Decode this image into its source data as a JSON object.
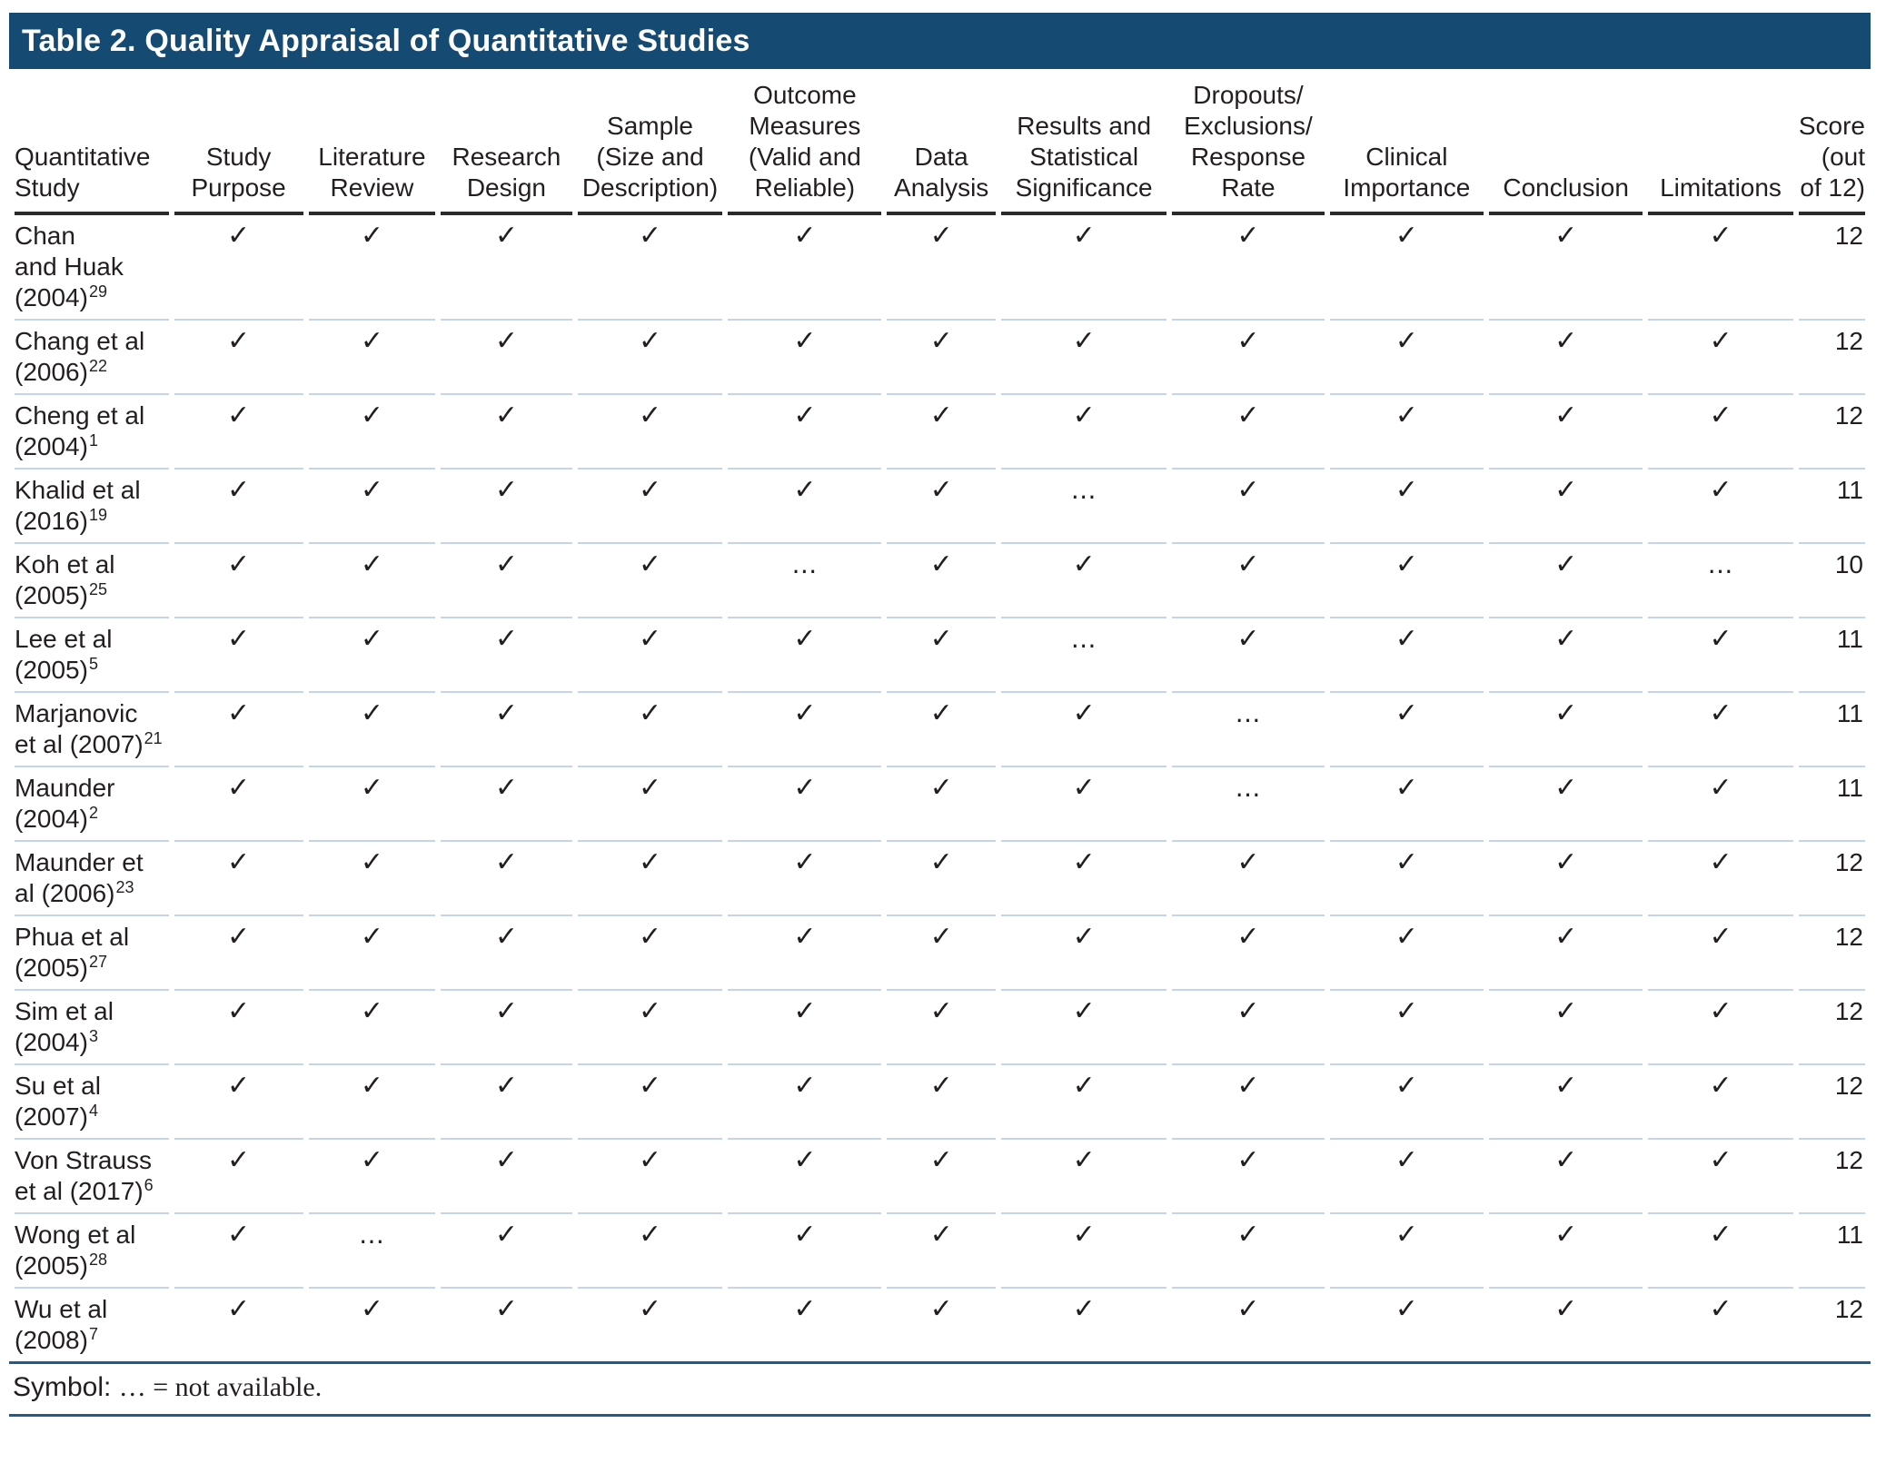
{
  "title": "Table 2. Quality Appraisal of Quantitative Studies",
  "colors": {
    "title_bar": "#154a73",
    "header_rule": "#2a2a2a",
    "row_separator": "#c4d4ea",
    "footnote_rule": "#1f5c8d",
    "text": "#231f20"
  },
  "symbols": {
    "check": "✓",
    "not_available": "…"
  },
  "columns": [
    {
      "id": "quantitative-study",
      "lines": [
        "Quantitative",
        "Study"
      ],
      "align": "left"
    },
    {
      "id": "study-purpose",
      "lines": [
        "Study",
        "Purpose"
      ],
      "align": "center"
    },
    {
      "id": "literature-review",
      "lines": [
        "Literature",
        "Review"
      ],
      "align": "center"
    },
    {
      "id": "research-design",
      "lines": [
        "Research",
        "Design"
      ],
      "align": "center"
    },
    {
      "id": "sample-size-description",
      "lines": [
        "Sample",
        "(Size and",
        "Description)"
      ],
      "align": "center"
    },
    {
      "id": "outcome-measures",
      "lines": [
        "Outcome",
        "Measures",
        "(Valid and",
        "Reliable)"
      ],
      "align": "center"
    },
    {
      "id": "data-analysis",
      "lines": [
        "Data",
        "Analysis"
      ],
      "align": "center"
    },
    {
      "id": "results-statistical-significance",
      "lines": [
        "Results and",
        "Statistical",
        "Significance"
      ],
      "align": "center"
    },
    {
      "id": "dropouts-exclusions-response-rate",
      "lines": [
        "Dropouts/",
        "Exclusions/",
        "Response",
        "Rate"
      ],
      "align": "center"
    },
    {
      "id": "clinical-importance",
      "lines": [
        "Clinical",
        "Importance"
      ],
      "align": "center"
    },
    {
      "id": "conclusion",
      "lines": [
        "Conclusion"
      ],
      "align": "center"
    },
    {
      "id": "limitations",
      "lines": [
        "Limitations"
      ],
      "align": "center"
    },
    {
      "id": "score",
      "lines": [
        "Score",
        "(out",
        "of 12)"
      ],
      "align": "right"
    }
  ],
  "rows": [
    {
      "study_lines": [
        "Chan",
        "and Huak",
        "(2004)"
      ],
      "ref": "29",
      "marks": [
        "check",
        "check",
        "check",
        "check",
        "check",
        "check",
        "check",
        "check",
        "check",
        "check",
        "check"
      ],
      "score": "12"
    },
    {
      "study_lines": [
        "Chang et al",
        "(2006)"
      ],
      "ref": "22",
      "marks": [
        "check",
        "check",
        "check",
        "check",
        "check",
        "check",
        "check",
        "check",
        "check",
        "check",
        "check"
      ],
      "score": "12"
    },
    {
      "study_lines": [
        "Cheng et al",
        "(2004)"
      ],
      "ref": "1",
      "marks": [
        "check",
        "check",
        "check",
        "check",
        "check",
        "check",
        "check",
        "check",
        "check",
        "check",
        "check"
      ],
      "score": "12"
    },
    {
      "study_lines": [
        "Khalid et al",
        "(2016)"
      ],
      "ref": "19",
      "marks": [
        "check",
        "check",
        "check",
        "check",
        "check",
        "check",
        "na",
        "check",
        "check",
        "check",
        "check"
      ],
      "score": "11"
    },
    {
      "study_lines": [
        "Koh et al",
        "(2005)"
      ],
      "ref": "25",
      "marks": [
        "check",
        "check",
        "check",
        "check",
        "na",
        "check",
        "check",
        "check",
        "check",
        "check",
        "na"
      ],
      "score": "10"
    },
    {
      "study_lines": [
        "Lee et al",
        "(2005)"
      ],
      "ref": "5",
      "marks": [
        "check",
        "check",
        "check",
        "check",
        "check",
        "check",
        "na",
        "check",
        "check",
        "check",
        "check"
      ],
      "score": "11"
    },
    {
      "study_lines": [
        "Marjanovic",
        "et al (2007)"
      ],
      "ref": "21",
      "marks": [
        "check",
        "check",
        "check",
        "check",
        "check",
        "check",
        "check",
        "na",
        "check",
        "check",
        "check"
      ],
      "score": "11"
    },
    {
      "study_lines": [
        "Maunder",
        "(2004)"
      ],
      "ref": "2",
      "marks": [
        "check",
        "check",
        "check",
        "check",
        "check",
        "check",
        "check",
        "na",
        "check",
        "check",
        "check"
      ],
      "score": "11"
    },
    {
      "study_lines": [
        "Maunder et",
        "al (2006)"
      ],
      "ref": "23",
      "marks": [
        "check",
        "check",
        "check",
        "check",
        "check",
        "check",
        "check",
        "check",
        "check",
        "check",
        "check"
      ],
      "score": "12"
    },
    {
      "study_lines": [
        "Phua et al",
        "(2005)"
      ],
      "ref": "27",
      "marks": [
        "check",
        "check",
        "check",
        "check",
        "check",
        "check",
        "check",
        "check",
        "check",
        "check",
        "check"
      ],
      "score": "12"
    },
    {
      "study_lines": [
        "Sim et al",
        "(2004)"
      ],
      "ref": "3",
      "marks": [
        "check",
        "check",
        "check",
        "check",
        "check",
        "check",
        "check",
        "check",
        "check",
        "check",
        "check"
      ],
      "score": "12"
    },
    {
      "study_lines": [
        "Su et al",
        "(2007)"
      ],
      "ref": "4",
      "marks": [
        "check",
        "check",
        "check",
        "check",
        "check",
        "check",
        "check",
        "check",
        "check",
        "check",
        "check"
      ],
      "score": "12"
    },
    {
      "study_lines": [
        "Von Strauss",
        "et al (2017)"
      ],
      "ref": "6",
      "marks": [
        "check",
        "check",
        "check",
        "check",
        "check",
        "check",
        "check",
        "check",
        "check",
        "check",
        "check"
      ],
      "score": "12"
    },
    {
      "study_lines": [
        "Wong et al",
        "(2005)"
      ],
      "ref": "28",
      "marks": [
        "check",
        "na",
        "check",
        "check",
        "check",
        "check",
        "check",
        "check",
        "check",
        "check",
        "check"
      ],
      "score": "11"
    },
    {
      "study_lines": [
        "Wu et al",
        "(2008)"
      ],
      "ref": "7",
      "marks": [
        "check",
        "check",
        "check",
        "check",
        "check",
        "check",
        "check",
        "check",
        "check",
        "check",
        "check"
      ],
      "score": "12"
    }
  ],
  "footnote": {
    "label": "Symbol:",
    "text": "… = not available."
  }
}
